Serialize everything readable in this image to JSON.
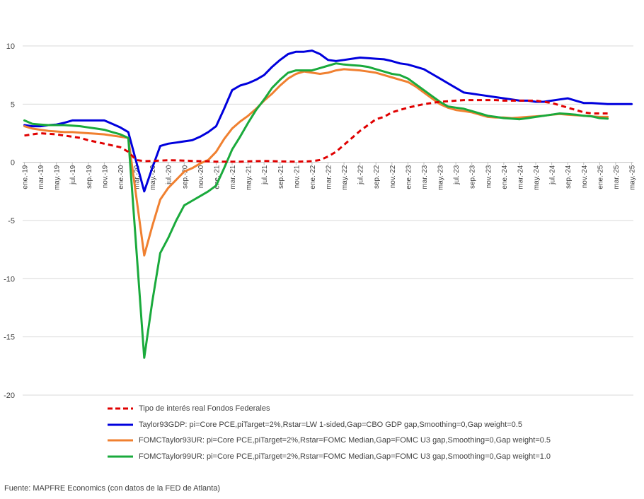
{
  "source": "Fuente: MAPFRE Economics (con datos de la FED de Atlanta)",
  "chart_data": {
    "type": "line",
    "title": "",
    "xlabel": "",
    "ylabel": "",
    "ylim": [
      -20,
      10
    ],
    "yticks": [
      10,
      5,
      0,
      -5,
      -10,
      -15,
      -20
    ],
    "grid": "horizontal",
    "legend_position": "bottom",
    "x": [
      "ene.-19",
      "feb.-19",
      "mar.-19",
      "abr.-19",
      "may.-19",
      "jun.-19",
      "jul.-19",
      "ago.-19",
      "sep.-19",
      "oct.-19",
      "nov.-19",
      "dic.-19",
      "ene.-20",
      "feb.-20",
      "mar.-20",
      "abr.-20",
      "may.-20",
      "jun.-20",
      "jul.-20",
      "ago.-20",
      "sep.-20",
      "oct.-20",
      "nov.-20",
      "dic.-20",
      "ene.-21",
      "feb.-21",
      "mar.-21",
      "abr.-21",
      "may.-21",
      "jun.-21",
      "jul.-21",
      "ago.-21",
      "sep.-21",
      "oct.-21",
      "nov.-21",
      "dic.-21",
      "ene.-22",
      "feb.-22",
      "mar.-22",
      "abr.-22",
      "may.-22",
      "jun.-22",
      "jul.-22",
      "ago.-22",
      "sep.-22",
      "oct.-22",
      "nov.-22",
      "dic.-22",
      "ene.-23",
      "feb.-23",
      "mar.-23",
      "abr.-23",
      "may.-23",
      "jun.-23",
      "jul.-23",
      "ago.-23",
      "sep.-23",
      "oct.-23",
      "nov.-23",
      "dic.-23",
      "ene.-24",
      "feb.-24",
      "mar.-24",
      "abr.-24",
      "may.-24",
      "jun.-24",
      "jul.-24",
      "ago.-24",
      "sep.-24",
      "oct.-24",
      "nov.-24",
      "dic.-24",
      "ene.-25",
      "feb.-25",
      "mar.-25",
      "abr.-25",
      "may.-25"
    ],
    "x_tick_labels": [
      "ene.-19",
      "mar.-19",
      "may.-19",
      "jul.-19",
      "sep.-19",
      "nov.-19",
      "ene.-20",
      "mar.-20",
      "may.-20",
      "jul.-20",
      "sep.-20",
      "nov.-20",
      "ene.-21",
      "mar.-21",
      "may.-21",
      "jul.-21",
      "sep.-21",
      "nov.-21",
      "ene.-22",
      "mar.-22",
      "may.-22",
      "jul.-22",
      "sep.-22",
      "nov.-22",
      "ene.-23",
      "mar.-23",
      "may.-23",
      "jul.-23",
      "sep.-23",
      "nov.-23",
      "ene.-24",
      "mar.-24",
      "may.-24",
      "jul.-24",
      "sep.-24",
      "nov.-24",
      "ene.-25",
      "mar.-25",
      "may.-25"
    ],
    "series": [
      {
        "name": "Tipo de interés real Fondos Federales",
        "color": "#e00000",
        "dashed": true,
        "values": [
          2.3,
          2.4,
          2.5,
          2.45,
          2.4,
          2.3,
          2.2,
          2.1,
          1.9,
          1.75,
          1.6,
          1.45,
          1.3,
          0.9,
          0.2,
          0.1,
          0.12,
          0.15,
          0.18,
          0.17,
          0.15,
          0.12,
          0.1,
          0.08,
          0.05,
          0.06,
          0.05,
          0.05,
          0.08,
          0.1,
          0.12,
          0.1,
          0.08,
          0.07,
          0.05,
          0.07,
          0.1,
          0.2,
          0.5,
          0.9,
          1.5,
          2.1,
          2.7,
          3.2,
          3.7,
          3.9,
          4.3,
          4.5,
          4.7,
          4.85,
          5.0,
          5.1,
          5.2,
          5.25,
          5.3,
          5.35,
          5.35,
          5.35,
          5.35,
          5.35,
          5.3,
          5.3,
          5.3,
          5.3,
          5.3,
          5.2,
          5.1,
          4.9,
          4.7,
          4.5,
          4.3,
          4.2,
          4.2,
          4.2,
          null,
          null,
          null
        ]
      },
      {
        "name": "Taylor93GDP:  pi=Core PCE,piTarget=2%,Rstar=LW 1-sided,Gap=CBO GDP gap,Smoothing=0,Gap weight=0.5",
        "color": "#0000dd",
        "dashed": false,
        "values": [
          3.2,
          3.1,
          3.1,
          3.2,
          3.25,
          3.4,
          3.6,
          3.6,
          3.6,
          3.6,
          3.6,
          3.3,
          3.0,
          2.6,
          null,
          -2.5,
          -0.5,
          1.4,
          1.6,
          1.7,
          1.8,
          1.9,
          2.2,
          2.6,
          3.1,
          4.6,
          6.2,
          6.6,
          6.8,
          7.1,
          7.5,
          8.2,
          8.8,
          9.3,
          9.5,
          9.5,
          9.6,
          9.3,
          8.8,
          8.7,
          8.8,
          8.9,
          9.0,
          8.95,
          8.9,
          8.85,
          8.7,
          8.5,
          8.4,
          8.2,
          8.0,
          7.6,
          7.2,
          6.8,
          6.4,
          6.0,
          5.9,
          5.8,
          5.7,
          5.6,
          5.5,
          5.4,
          5.3,
          5.3,
          5.2,
          5.2,
          5.3,
          5.4,
          5.5,
          5.3,
          5.1,
          5.1,
          5.05,
          5.0,
          5.0,
          5.0,
          5.0
        ]
      },
      {
        "name": "FOMCTaylor93UR:  pi=Core PCE,piTarget=2%,Rstar=FOMC Median,Gap=FOMC U3 gap,Smoothing=0,Gap weight=0.5",
        "color": "#f08030",
        "dashed": false,
        "values": [
          3.1,
          2.9,
          2.8,
          2.7,
          2.65,
          2.6,
          2.6,
          2.55,
          2.5,
          2.45,
          2.4,
          2.3,
          2.2,
          2.1,
          null,
          -8.0,
          -5.5,
          -3.2,
          -2.2,
          -1.5,
          -0.8,
          -0.5,
          -0.1,
          0.2,
          0.9,
          2.0,
          2.9,
          3.5,
          4.0,
          4.6,
          5.3,
          5.9,
          6.6,
          7.2,
          7.6,
          7.8,
          7.7,
          7.6,
          7.7,
          7.9,
          8.0,
          7.95,
          7.9,
          7.8,
          7.7,
          7.5,
          7.3,
          7.1,
          6.9,
          6.5,
          6.0,
          5.5,
          5.0,
          4.7,
          4.5,
          4.4,
          4.3,
          4.1,
          3.9,
          3.85,
          3.85,
          3.8,
          3.85,
          3.9,
          3.95,
          4.0,
          4.1,
          4.15,
          4.1,
          4.05,
          4.0,
          3.95,
          3.9,
          3.9,
          null,
          null,
          null
        ]
      },
      {
        "name": "FOMCTaylor99UR:  pi=Core PCE,piTarget=2%,Rstar=FOMC Median,Gap=FOMC U3 gap,Smoothing=0,Gap weight=1.0",
        "color": "#1aaa3c",
        "dashed": false,
        "values": [
          3.6,
          3.3,
          3.25,
          3.2,
          3.2,
          3.2,
          3.15,
          3.1,
          3.0,
          2.9,
          2.8,
          2.6,
          2.4,
          2.1,
          null,
          -16.8,
          -12.0,
          -7.8,
          -6.5,
          -5.0,
          -3.7,
          -3.3,
          -2.9,
          -2.5,
          -2.0,
          -0.5,
          1.1,
          2.2,
          3.4,
          4.5,
          5.4,
          6.4,
          7.1,
          7.7,
          7.9,
          7.9,
          7.9,
          8.1,
          8.3,
          8.5,
          8.4,
          8.35,
          8.3,
          8.2,
          8.0,
          7.8,
          7.6,
          7.5,
          7.2,
          6.7,
          6.2,
          5.7,
          5.2,
          4.8,
          4.7,
          4.6,
          4.4,
          4.2,
          4.0,
          3.9,
          3.8,
          3.75,
          3.7,
          3.8,
          3.9,
          4.0,
          4.1,
          4.2,
          4.15,
          4.1,
          4.0,
          3.95,
          3.8,
          3.75,
          null,
          null,
          null
        ]
      }
    ]
  }
}
